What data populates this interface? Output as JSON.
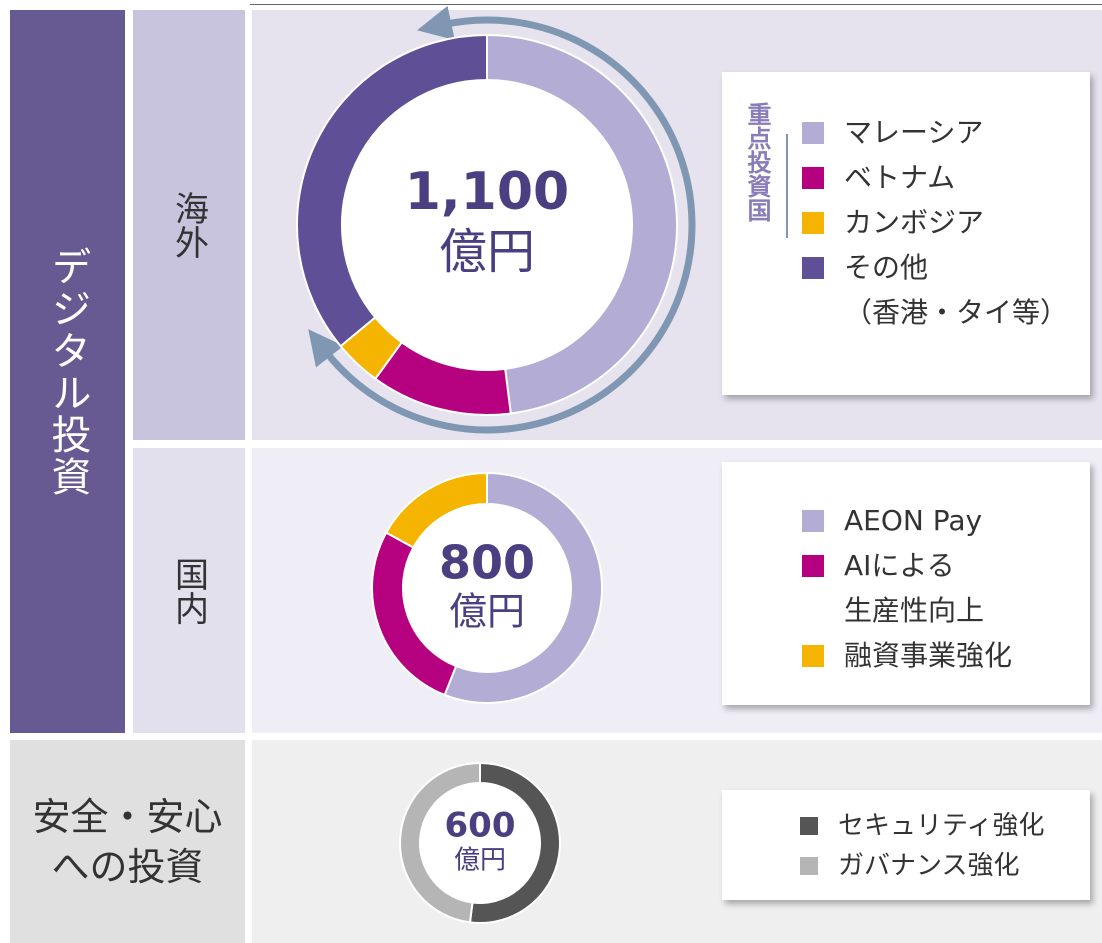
{
  "group_label": "デジタル投資",
  "charts": [
    {
      "type": "donut",
      "row_label": "海外",
      "total": "1,100",
      "unit": "億円",
      "legend_heading": "重点投資国",
      "categories": [
        "マレーシア",
        "ベトナム",
        "カンボジア",
        "その他\n（香港・タイ等）"
      ],
      "values": [
        48,
        12,
        4,
        36
      ],
      "colors": [
        "#b3acd4",
        "#b5007f",
        "#f5b400",
        "#5f4f96"
      ]
    },
    {
      "type": "donut",
      "row_label": "国内",
      "total": "800",
      "unit": "億円",
      "categories": [
        "AEON Pay",
        "AIによる\n生産性向上",
        "融資事業強化"
      ],
      "values": [
        56,
        27,
        17
      ],
      "colors": [
        "#b3acd4",
        "#b5007f",
        "#f5b400"
      ]
    },
    {
      "type": "donut",
      "row_label": "安全・安心\nへの投資",
      "total": "600",
      "unit": "億円",
      "categories": [
        "セキュリティ強化",
        "ガバナンス強化"
      ],
      "values": [
        52,
        48
      ],
      "colors": [
        "#555555",
        "#b5b5b5"
      ]
    }
  ]
}
